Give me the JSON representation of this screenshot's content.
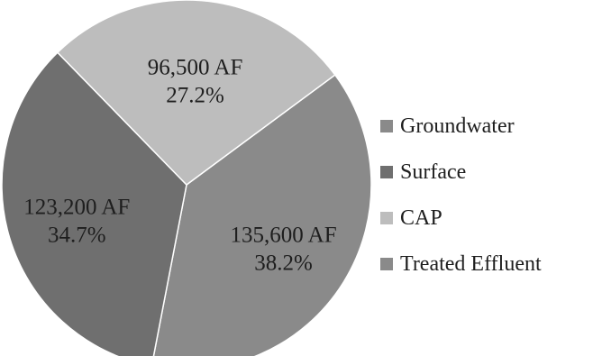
{
  "chart_data": {
    "type": "pie",
    "slices": [
      {
        "name": "Groundwater",
        "value": 135600,
        "label": "135,600 AF",
        "percent": "38.2%",
        "color": "#8a8a8a"
      },
      {
        "name": "Surface",
        "value": 123200,
        "label": "123,200 AF",
        "percent": "34.7%",
        "color": "#6f6f6f"
      },
      {
        "name": "CAP",
        "value": 96500,
        "label": "96,500 AF",
        "percent": "27.2%",
        "color": "#bdbdbd"
      },
      {
        "name": "Treated Effluent",
        "value": 0,
        "label": "",
        "percent": "",
        "color": "#8a8a8a"
      }
    ],
    "legend": {
      "placement": "right",
      "entries": [
        "Groundwater",
        "Surface",
        "CAP",
        "Treated Effluent"
      ]
    },
    "title": ""
  }
}
